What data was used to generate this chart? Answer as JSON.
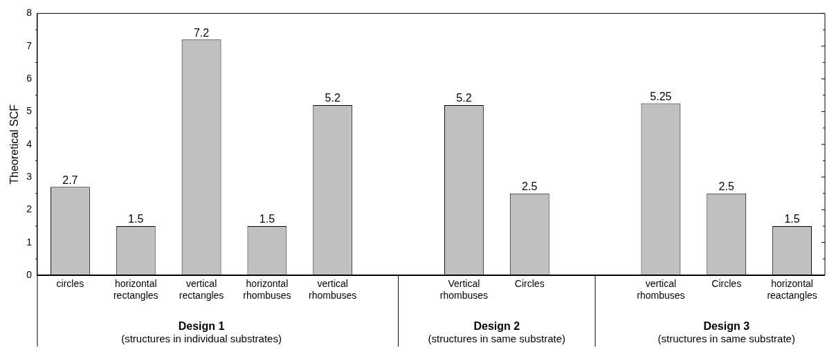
{
  "chart_data": {
    "type": "bar",
    "ylabel": "Theoretical SCF",
    "categories": [
      "circles",
      "horizontal rectangles",
      "vertical rectangles",
      "horizontal rhombuses",
      "vertical rhombuses",
      null,
      "Vertical rhombuses",
      "Circles",
      null,
      "vertical rhombuses",
      "Circles",
      "horizontal reactangles"
    ],
    "values": [
      2.7,
      1.5,
      7.2,
      1.5,
      5.2,
      null,
      5.2,
      2.5,
      null,
      5.25,
      2.5,
      1.5
    ],
    "color": "#c0c0c0",
    "ylim": [
      0,
      8
    ],
    "yticks": [
      0,
      1,
      2,
      3,
      4,
      5,
      6,
      7,
      8
    ],
    "grid": false,
    "data_labels": true,
    "annotations": [
      "Design 1",
      "(structures in individual substrates)",
      "Design 2",
      "(structures in same substrate)",
      "Design 3",
      "(structures in same substrate)"
    ]
  }
}
